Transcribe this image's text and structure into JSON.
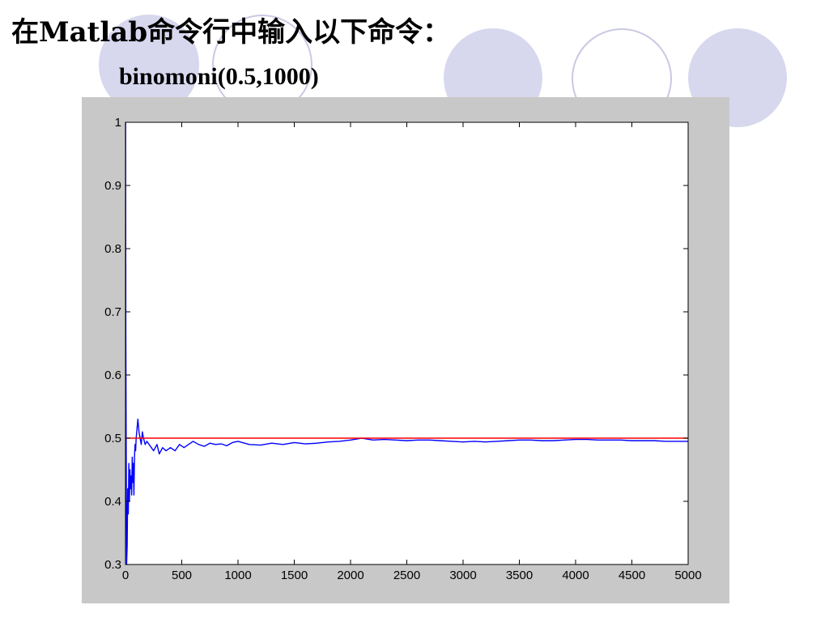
{
  "slide": {
    "heading": "在Matlab命令行中输入以下命令：",
    "command": "binomoni(0.5,1000)"
  },
  "colors": {
    "decor_fill": "#d7d7ee",
    "decor_outline": "#c9c9e3",
    "figure_background": "#c8c8c8",
    "simulation_line": "#0000ff",
    "reference_line": "#ff0000"
  },
  "chart_data": {
    "type": "line",
    "title": "",
    "xlabel": "",
    "ylabel": "",
    "xlim": [
      0,
      5000
    ],
    "ylim": [
      0.3,
      1
    ],
    "x_ticks": [
      "0",
      "500",
      "1000",
      "1500",
      "2000",
      "2500",
      "3000",
      "3500",
      "4000",
      "4500",
      "5000"
    ],
    "y_ticks": [
      "0.3",
      "0.4",
      "0.5",
      "0.6",
      "0.7",
      "0.8",
      "0.9",
      "1"
    ],
    "grid": false,
    "series": [
      {
        "color": "#0000ff",
        "x": [
          1,
          3,
          6,
          10,
          15,
          20,
          25,
          30,
          35,
          40,
          45,
          50,
          55,
          60,
          65,
          70,
          75,
          80,
          85,
          90,
          95,
          100,
          110,
          120,
          130,
          140,
          150,
          160,
          175,
          190,
          210,
          230,
          250,
          280,
          300,
          330,
          360,
          400,
          440,
          480,
          520,
          560,
          600,
          650,
          700,
          750,
          800,
          850,
          900,
          950,
          1000,
          1100,
          1200,
          1300,
          1400,
          1500,
          1600,
          1700,
          1800,
          1900,
          2000,
          2100,
          2200,
          2300,
          2400,
          2500,
          2600,
          2700,
          2800,
          2900,
          3000,
          3100,
          3200,
          3300,
          3400,
          3500,
          3600,
          3700,
          3800,
          3900,
          4000,
          4100,
          4200,
          4300,
          4400,
          4500,
          4600,
          4700,
          4800,
          4900,
          5000
        ],
        "y": [
          1.0,
          0.67,
          0.5,
          0.3,
          0.33,
          0.42,
          0.38,
          0.46,
          0.4,
          0.45,
          0.42,
          0.44,
          0.41,
          0.47,
          0.43,
          0.46,
          0.41,
          0.47,
          0.49,
          0.48,
          0.5,
          0.51,
          0.53,
          0.51,
          0.5,
          0.49,
          0.51,
          0.5,
          0.49,
          0.495,
          0.49,
          0.485,
          0.48,
          0.49,
          0.475,
          0.485,
          0.48,
          0.485,
          0.48,
          0.49,
          0.485,
          0.49,
          0.495,
          0.49,
          0.487,
          0.492,
          0.49,
          0.491,
          0.488,
          0.493,
          0.495,
          0.49,
          0.489,
          0.492,
          0.49,
          0.493,
          0.491,
          0.492,
          0.494,
          0.495,
          0.497,
          0.5,
          0.497,
          0.498,
          0.497,
          0.496,
          0.497,
          0.497,
          0.496,
          0.495,
          0.494,
          0.495,
          0.494,
          0.495,
          0.496,
          0.497,
          0.497,
          0.496,
          0.496,
          0.497,
          0.498,
          0.498,
          0.497,
          0.497,
          0.497,
          0.496,
          0.496,
          0.496,
          0.495,
          0.495,
          0.495
        ]
      },
      {
        "color": "#ff0000",
        "x": [
          0,
          5000
        ],
        "y": [
          0.5,
          0.5
        ]
      }
    ]
  }
}
